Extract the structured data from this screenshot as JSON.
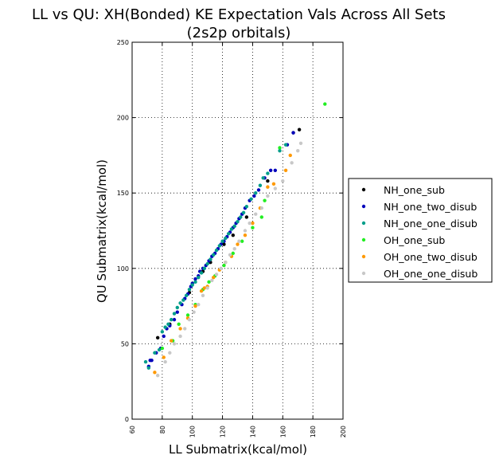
{
  "chart_data": {
    "type": "scatter",
    "title": "LL vs QU: XH(Bonded) KE Expectation Vals Across All Sets",
    "subtitle": "(2s2p orbitals)",
    "xlabel": "LL Submatrix(kcal/mol)",
    "ylabel": "QU Submatrix(kcal/mol)",
    "xlim": [
      60,
      200
    ],
    "ylim": [
      0,
      250
    ],
    "xticks": [
      60,
      80,
      100,
      120,
      140,
      160,
      180,
      200
    ],
    "yticks": [
      0,
      50,
      100,
      150,
      200,
      250
    ],
    "grid": true,
    "grid_style": "dotted",
    "legend_position": "right",
    "series": [
      {
        "name": "NH_one_sub",
        "color": "#000000",
        "points": [
          [
            77,
            54
          ],
          [
            85,
            63
          ],
          [
            98,
            84
          ],
          [
            107,
            98
          ],
          [
            112,
            104
          ],
          [
            121,
            116
          ],
          [
            127,
            122
          ],
          [
            136,
            134
          ],
          [
            150,
            158
          ],
          [
            167,
            190
          ],
          [
            171,
            192
          ]
        ]
      },
      {
        "name": "NH_one_two_disub",
        "color": "#0000bb",
        "points": [
          [
            71,
            35
          ],
          [
            72,
            39
          ],
          [
            73,
            39
          ],
          [
            76,
            44
          ],
          [
            79,
            47
          ],
          [
            81,
            55
          ],
          [
            83,
            60
          ],
          [
            85,
            62
          ],
          [
            88,
            66
          ],
          [
            90,
            71
          ],
          [
            93,
            76
          ],
          [
            95,
            80
          ],
          [
            97,
            83
          ],
          [
            99,
            88
          ],
          [
            100,
            90
          ],
          [
            102,
            93
          ],
          [
            104,
            95
          ],
          [
            105,
            98
          ],
          [
            107,
            100
          ],
          [
            109,
            102
          ],
          [
            111,
            105
          ],
          [
            113,
            108
          ],
          [
            115,
            110
          ],
          [
            117,
            113
          ],
          [
            119,
            116
          ],
          [
            121,
            118
          ],
          [
            123,
            121
          ],
          [
            125,
            124
          ],
          [
            127,
            127
          ],
          [
            129,
            130
          ],
          [
            131,
            133
          ],
          [
            133,
            136
          ],
          [
            135,
            140
          ],
          [
            138,
            145
          ],
          [
            141,
            148
          ],
          [
            144,
            152
          ],
          [
            148,
            160
          ],
          [
            152,
            165
          ],
          [
            155,
            165
          ],
          [
            163,
            182
          ],
          [
            167,
            190
          ]
        ]
      },
      {
        "name": "NH_one_one_disub",
        "color": "#009e8a",
        "points": [
          [
            69,
            38
          ],
          [
            71,
            34
          ],
          [
            75,
            44
          ],
          [
            78,
            46
          ],
          [
            80,
            58
          ],
          [
            82,
            61
          ],
          [
            84,
            63
          ],
          [
            86,
            66
          ],
          [
            88,
            70
          ],
          [
            90,
            74
          ],
          [
            92,
            77
          ],
          [
            94,
            79
          ],
          [
            96,
            82
          ],
          [
            98,
            86
          ],
          [
            100,
            89
          ],
          [
            102,
            91
          ],
          [
            104,
            94
          ],
          [
            106,
            97
          ],
          [
            108,
            100
          ],
          [
            110,
            103
          ],
          [
            112,
            106
          ],
          [
            114,
            109
          ],
          [
            116,
            112
          ],
          [
            118,
            115
          ],
          [
            120,
            118
          ],
          [
            122,
            120
          ],
          [
            124,
            123
          ],
          [
            126,
            126
          ],
          [
            128,
            128
          ],
          [
            130,
            131
          ],
          [
            132,
            134
          ],
          [
            134,
            137
          ],
          [
            136,
            141
          ],
          [
            139,
            146
          ],
          [
            142,
            150
          ],
          [
            145,
            155
          ],
          [
            147,
            160
          ],
          [
            150,
            163
          ],
          [
            158,
            178
          ],
          [
            162,
            182
          ]
        ]
      },
      {
        "name": "OH_one_sub",
        "color": "#22ee22",
        "points": [
          [
            80,
            47
          ],
          [
            87,
            52
          ],
          [
            91,
            63
          ],
          [
            97,
            69
          ],
          [
            102,
            76
          ],
          [
            107,
            86
          ],
          [
            111,
            91
          ],
          [
            115,
            95
          ],
          [
            121,
            102
          ],
          [
            127,
            110
          ],
          [
            133,
            118
          ],
          [
            140,
            127
          ],
          [
            146,
            134
          ],
          [
            148,
            145
          ],
          [
            158,
            180
          ],
          [
            188,
            209
          ]
        ]
      },
      {
        "name": "OH_one_two_disub",
        "color": "#ff9900",
        "points": [
          [
            75,
            31
          ],
          [
            81,
            41
          ],
          [
            86,
            52
          ],
          [
            92,
            60
          ],
          [
            97,
            67
          ],
          [
            102,
            75
          ],
          [
            106,
            85
          ],
          [
            108,
            87
          ],
          [
            110,
            88
          ],
          [
            114,
            94
          ],
          [
            118,
            99
          ],
          [
            122,
            104
          ],
          [
            126,
            108
          ],
          [
            130,
            116
          ],
          [
            135,
            122
          ],
          [
            140,
            130
          ],
          [
            145,
            140
          ],
          [
            150,
            154
          ],
          [
            154,
            156
          ],
          [
            162,
            165
          ],
          [
            165,
            175
          ]
        ]
      },
      {
        "name": "OH_one_one_disub",
        "color": "#c8c8c8",
        "points": [
          [
            77,
            29
          ],
          [
            82,
            38
          ],
          [
            85,
            44
          ],
          [
            88,
            50
          ],
          [
            92,
            55
          ],
          [
            95,
            60
          ],
          [
            98,
            66
          ],
          [
            101,
            71
          ],
          [
            104,
            76
          ],
          [
            107,
            82
          ],
          [
            110,
            87
          ],
          [
            113,
            92
          ],
          [
            116,
            96
          ],
          [
            119,
            100
          ],
          [
            122,
            104
          ],
          [
            125,
            109
          ],
          [
            128,
            113
          ],
          [
            131,
            118
          ],
          [
            135,
            125
          ],
          [
            138,
            130
          ],
          [
            142,
            136
          ],
          [
            146,
            140
          ],
          [
            150,
            148
          ],
          [
            155,
            153
          ],
          [
            160,
            158
          ],
          [
            166,
            170
          ],
          [
            170,
            178
          ],
          [
            172,
            183
          ]
        ]
      }
    ]
  }
}
